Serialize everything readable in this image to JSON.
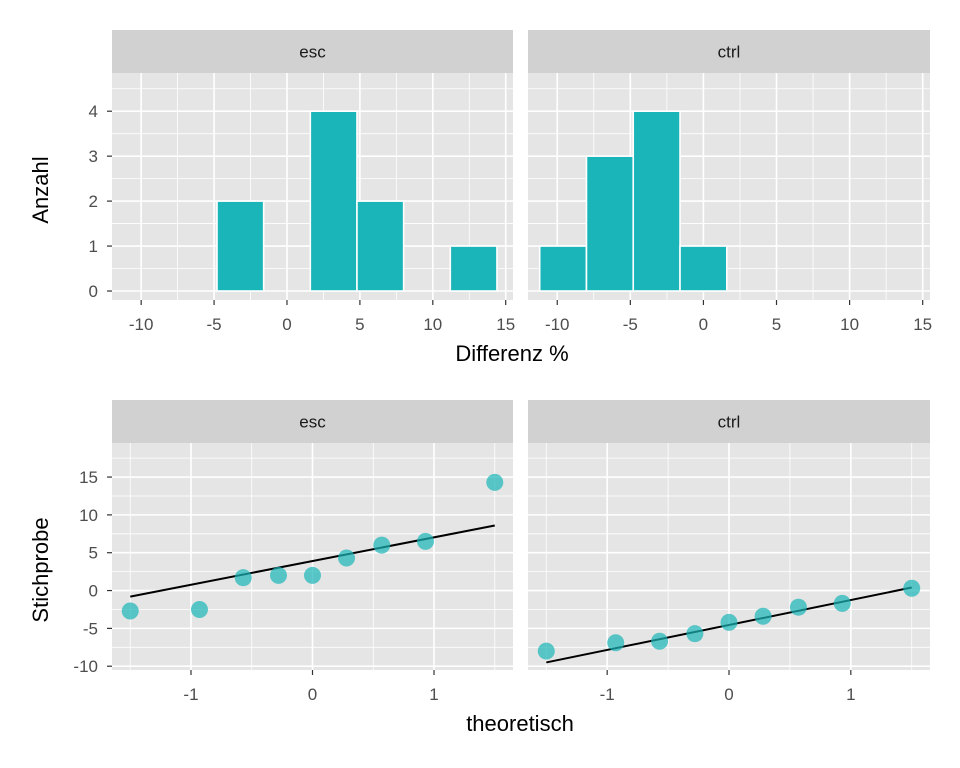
{
  "colors": {
    "panel_bg": "#e5e5e5",
    "strip_bg": "#d1d1d1",
    "grid": "#ffffff",
    "bar_fill": "#19b5b8",
    "point_fill": "#19b5b8",
    "line": "#000000",
    "tick": "#333333"
  },
  "chart_data": [
    {
      "type": "bar",
      "facets": [
        "esc",
        "ctrl"
      ],
      "xlabel": "Differenz %",
      "ylabel": "Anzahl",
      "xlim": [
        -12,
        15.5
      ],
      "ylim": [
        -0.2,
        4.85
      ],
      "x_ticks": [
        -10,
        -5,
        0,
        5,
        10,
        15
      ],
      "x_tick_labels": [
        "-10",
        "-5",
        "0",
        "5",
        "10",
        "15"
      ],
      "y_ticks": [
        0,
        1,
        2,
        3,
        4
      ],
      "y_tick_labels": [
        "0",
        "1",
        "2",
        "3",
        "4"
      ],
      "bin_width": 3.2,
      "series": [
        {
          "facet": "esc",
          "bins": [
            {
              "center": -3.2,
              "count": 2
            },
            {
              "center": 3.2,
              "count": 4
            },
            {
              "center": 6.4,
              "count": 2
            },
            {
              "center": 12.8,
              "count": 1
            }
          ]
        },
        {
          "facet": "ctrl",
          "bins": [
            {
              "center": -9.6,
              "count": 1
            },
            {
              "center": -6.4,
              "count": 3
            },
            {
              "center": -3.2,
              "count": 4
            },
            {
              "center": 0.0,
              "count": 1
            }
          ]
        }
      ]
    },
    {
      "type": "scatter",
      "facets": [
        "esc",
        "ctrl"
      ],
      "xlabel": "theoretisch",
      "ylabel": "Stichprobe",
      "xlim": [
        -1.65,
        1.65
      ],
      "ylim": [
        -10.5,
        19.5
      ],
      "x_ticks": [
        -1,
        0,
        1
      ],
      "x_tick_labels": [
        "-1",
        "0",
        "1"
      ],
      "y_ticks": [
        -10,
        -5,
        0,
        5,
        10,
        15
      ],
      "y_tick_labels": [
        "-10",
        "-5",
        "0",
        "5",
        "10",
        "15"
      ],
      "series": [
        {
          "facet": "esc",
          "x": [
            -1.5,
            -0.93,
            -0.57,
            -0.28,
            0.0,
            0.28,
            0.57,
            0.93,
            1.5
          ],
          "y": [
            -2.7,
            -2.5,
            1.7,
            2.0,
            2.0,
            4.3,
            6.0,
            6.5,
            14.3
          ],
          "line": [
            [
              -1.5,
              -0.8
            ],
            [
              1.5,
              8.6
            ]
          ]
        },
        {
          "facet": "ctrl",
          "x": [
            -1.5,
            -0.93,
            -0.57,
            -0.28,
            0.0,
            0.28,
            0.57,
            0.93,
            1.5
          ],
          "y": [
            -8.0,
            -6.9,
            -6.7,
            -5.7,
            -4.2,
            -3.4,
            -2.2,
            -1.7,
            0.3
          ],
          "line": [
            [
              -1.5,
              -9.5
            ],
            [
              1.5,
              0.4
            ]
          ]
        }
      ]
    }
  ]
}
